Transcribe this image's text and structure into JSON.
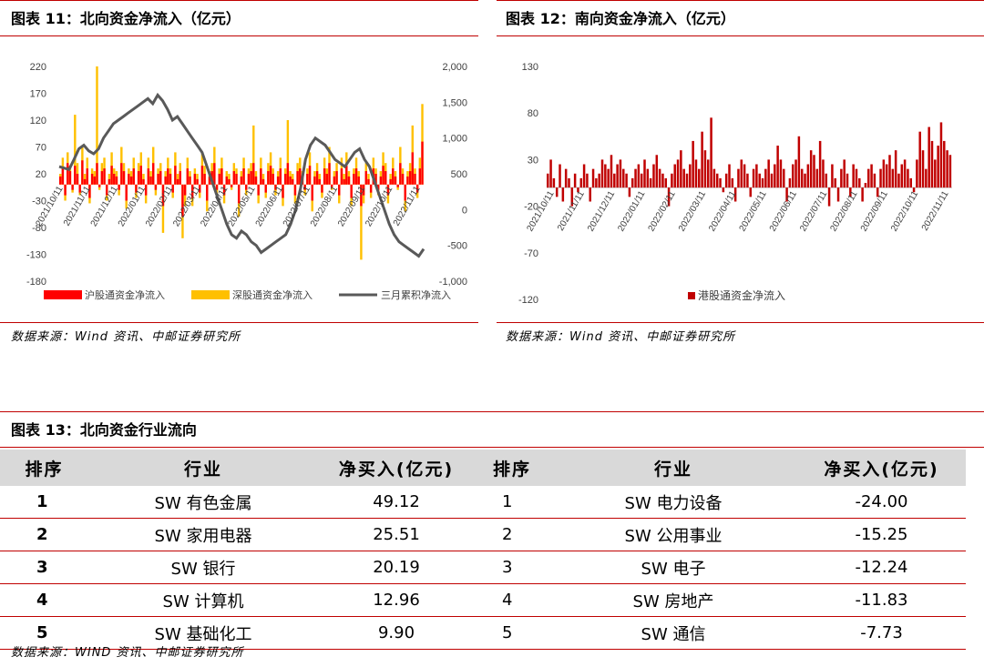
{
  "fig11": {
    "title": "图表 11：北向资金净流入（亿元）",
    "source": "数据来源：Wind 资讯、中邮证券研究所",
    "chart_data": {
      "type": "bar",
      "left_ticks": [
        "220",
        "170",
        "120",
        "70",
        "20",
        "-30",
        "-80",
        "-130",
        "-180"
      ],
      "right_ticks": [
        "2,000",
        "1,500",
        "1,000",
        "500",
        "0",
        "-500",
        "-1,000"
      ],
      "ylim_left": [
        -180,
        220
      ],
      "ylim_right": [
        -1000,
        2000
      ],
      "x_ticks": [
        "2021/10/11",
        "2021/11/11",
        "2021/12/11",
        "2022/01/11",
        "2022/02/11",
        "2022/03/11",
        "2022/04/11",
        "2022/05/11",
        "2022/06/11",
        "2022/07/11",
        "2022/08/11",
        "2022/09/11",
        "2022/10/11",
        "2022/11/11"
      ],
      "legend": [
        "沪股通资金净流入",
        "深股通资金净流入",
        "三月累积净流入"
      ],
      "colors": {
        "sh": "#ff0000",
        "sz": "#ffc000",
        "cum": "#595959"
      },
      "sh_values": [
        15,
        30,
        -20,
        40,
        25,
        -10,
        35,
        20,
        -15,
        45,
        10,
        30,
        -25,
        20,
        15,
        40,
        -5,
        25,
        30,
        -20,
        10,
        35,
        20,
        15,
        -10,
        40,
        25,
        -30,
        20,
        15,
        30,
        -15,
        25,
        35,
        10,
        -20,
        30,
        15,
        40,
        -10,
        20,
        25,
        -40,
        15,
        30,
        20,
        -15,
        35,
        10,
        25,
        -60,
        -20,
        30,
        15,
        -25,
        20,
        10,
        -15,
        35,
        20,
        -30,
        15,
        25,
        40,
        -10,
        20,
        30,
        -20,
        15,
        10,
        -5,
        25,
        20,
        -35,
        15,
        30,
        -10,
        20,
        25,
        40,
        15,
        -20,
        30,
        10,
        -15,
        25,
        35,
        20,
        -10,
        15,
        30,
        -25,
        20,
        40,
        15,
        10,
        -20,
        25,
        30,
        15,
        -10,
        20,
        35,
        -30,
        15,
        25,
        10,
        -15,
        30,
        20,
        40,
        -5,
        15,
        25,
        -20,
        30,
        10,
        35,
        15,
        -25,
        20,
        30,
        15,
        -40,
        -20,
        25,
        10,
        -15,
        30,
        20,
        -10,
        15,
        35,
        25,
        -20,
        10,
        30,
        15,
        -5,
        40,
        20,
        -30,
        15,
        25,
        60,
        20,
        -15,
        30,
        80
      ],
      "sz_values": [
        20,
        50,
        -30,
        60,
        35,
        -15,
        130,
        40,
        -20,
        70,
        20,
        50,
        -35,
        30,
        25,
        220,
        -10,
        40,
        50,
        -30,
        20,
        60,
        30,
        25,
        -20,
        70,
        40,
        -45,
        30,
        25,
        50,
        -25,
        40,
        60,
        20,
        -35,
        50,
        25,
        70,
        -20,
        30,
        40,
        -90,
        25,
        50,
        30,
        -25,
        60,
        20,
        40,
        -100,
        -40,
        50,
        25,
        -40,
        30,
        20,
        -25,
        60,
        35,
        -50,
        25,
        40,
        70,
        -20,
        30,
        50,
        -35,
        25,
        20,
        -10,
        40,
        30,
        -60,
        25,
        50,
        -20,
        30,
        40,
        110,
        25,
        -35,
        50,
        20,
        -25,
        40,
        60,
        30,
        -20,
        25,
        50,
        -40,
        30,
        120,
        25,
        20,
        -35,
        40,
        50,
        25,
        -20,
        30,
        60,
        -50,
        25,
        40,
        20,
        -25,
        50,
        30,
        70,
        -10,
        25,
        40,
        -35,
        50,
        20,
        60,
        25,
        -40,
        30,
        50,
        25,
        -140,
        -35,
        40,
        20,
        -25,
        50,
        30,
        -20,
        25,
        60,
        40,
        -35,
        20,
        50,
        25,
        -10,
        70,
        30,
        -50,
        25,
        40,
        110,
        30,
        -25,
        50,
        150
      ],
      "cum_values": [
        600,
        580,
        560,
        700,
        850,
        900,
        820,
        780,
        850,
        1000,
        1100,
        1200,
        1250,
        1300,
        1350,
        1400,
        1450,
        1500,
        1550,
        1480,
        1600,
        1520,
        1400,
        1250,
        1300,
        1200,
        1100,
        1000,
        900,
        800,
        600,
        400,
        200,
        0,
        -200,
        -350,
        -400,
        -300,
        -350,
        -450,
        -500,
        -600,
        -550,
        -500,
        -450,
        -400,
        -350,
        -200,
        0,
        300,
        700,
        900,
        1000,
        950,
        900,
        800,
        700,
        650,
        600,
        700,
        800,
        850,
        700,
        600,
        400,
        200,
        0,
        -200,
        -350,
        -450,
        -500,
        -550,
        -600,
        -650,
        -550
      ]
    }
  },
  "fig12": {
    "title": "图表 12：南向资金净流入（亿元）",
    "source": "数据来源：Wind 资讯、中邮证券研究所",
    "chart_data": {
      "type": "bar",
      "left_ticks": [
        "130",
        "80",
        "30",
        "-20",
        "-70",
        "-120"
      ],
      "ylim": [
        -120,
        130
      ],
      "x_ticks": [
        "2021/10/11",
        "2021/11/11",
        "2021/12/11",
        "2022/01/11",
        "2022/02/11",
        "2022/03/11",
        "2022/04/11",
        "2022/05/11",
        "2022/06/11",
        "2022/07/11",
        "2022/08/11",
        "2022/09/11",
        "2022/10/11",
        "2022/11/11"
      ],
      "legend": [
        "港股通资金净流入"
      ],
      "color": "#c00000",
      "values": [
        15,
        30,
        10,
        -10,
        25,
        -15,
        20,
        10,
        -20,
        15,
        -5,
        10,
        25,
        15,
        -15,
        20,
        10,
        15,
        30,
        25,
        20,
        35,
        15,
        25,
        30,
        20,
        15,
        -10,
        10,
        20,
        25,
        15,
        30,
        20,
        10,
        25,
        35,
        20,
        15,
        10,
        -20,
        15,
        25,
        30,
        40,
        20,
        15,
        25,
        50,
        30,
        20,
        60,
        40,
        30,
        75,
        20,
        15,
        10,
        -5,
        15,
        25,
        10,
        -15,
        20,
        30,
        25,
        15,
        -10,
        20,
        25,
        15,
        10,
        20,
        30,
        15,
        25,
        45,
        30,
        20,
        -15,
        10,
        25,
        30,
        55,
        20,
        15,
        25,
        40,
        35,
        20,
        50,
        30,
        15,
        -20,
        25,
        10,
        -15,
        20,
        30,
        15,
        -10,
        25,
        20,
        10,
        -15,
        5,
        20,
        25,
        15,
        -10,
        20,
        30,
        25,
        35,
        20,
        40,
        15,
        25,
        30,
        20,
        10,
        -5,
        30,
        60,
        40,
        20,
        65,
        50,
        30,
        45,
        70,
        50,
        40,
        35
      ]
    }
  },
  "fig13": {
    "title": "图表 13：北向资金行业流向",
    "source": "数据来源：WIND 资讯、中邮证券研究所",
    "headers": [
      "排序",
      "行业",
      "净买入(亿元)",
      "排序",
      "行业",
      "净买入(亿元)"
    ],
    "rows": [
      {
        "r1": "1",
        "i1": "SW 有色金属",
        "v1": "49.12",
        "r2": "1",
        "i2": "SW 电力设备",
        "v2": "-24.00"
      },
      {
        "r1": "2",
        "i1": "SW 家用电器",
        "v1": "25.51",
        "r2": "2",
        "i2": "SW 公用事业",
        "v2": "-15.25"
      },
      {
        "r1": "3",
        "i1": "SW 银行",
        "v1": "20.19",
        "r2": "3",
        "i2": "SW 电子",
        "v2": "-12.24"
      },
      {
        "r1": "4",
        "i1": "SW 计算机",
        "v1": "12.96",
        "r2": "4",
        "i2": "SW 房地产",
        "v2": "-11.83"
      },
      {
        "r1": "5",
        "i1": "SW 基础化工",
        "v1": "9.90",
        "r2": "5",
        "i2": "SW 通信",
        "v2": "-7.73"
      }
    ]
  }
}
